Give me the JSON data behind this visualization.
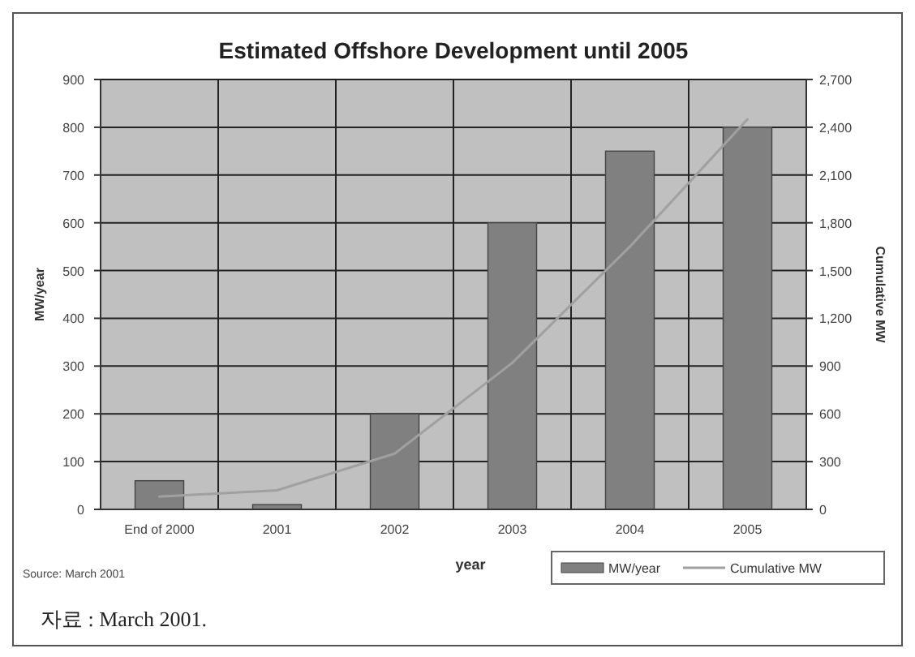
{
  "chart_data": {
    "type": "bar",
    "title": "Estimated Offshore Development until 2005",
    "xlabel": "year",
    "ylabel": "MW/year",
    "y2label": "Cumulative MW",
    "categories": [
      "End of 2000",
      "2001",
      "2002",
      "2003",
      "2004",
      "2005"
    ],
    "series": [
      {
        "name": "MW/year",
        "color": "#808080",
        "values": [
          60,
          10,
          200,
          600,
          750,
          800
        ]
      },
      {
        "name": "Cumulative MW",
        "type": "line",
        "axis": "y2",
        "color": "#a0a0a0",
        "values": [
          80,
          120,
          350,
          920,
          1650,
          2450
        ]
      }
    ],
    "ylim": [
      0,
      900
    ],
    "yticks": [
      0,
      100,
      200,
      300,
      400,
      500,
      600,
      700,
      800,
      900
    ],
    "y2lim": [
      0,
      2700
    ],
    "y2ticks": [
      0,
      300,
      600,
      900,
      {
        "value": 1200,
        "label": "1,200"
      },
      {
        "value": 1500,
        "label": "1,500"
      },
      {
        "value": 1800,
        "label": "1,800"
      },
      {
        "value": 2100,
        "label": "2,100"
      },
      {
        "value": 2400,
        "label": "2,400"
      },
      {
        "value": 2700,
        "label": "2,700"
      }
    ],
    "grid": true,
    "legend": "bottom right",
    "annotations": [
      "Source: March 2001",
      "자료 : March 2001."
    ]
  }
}
